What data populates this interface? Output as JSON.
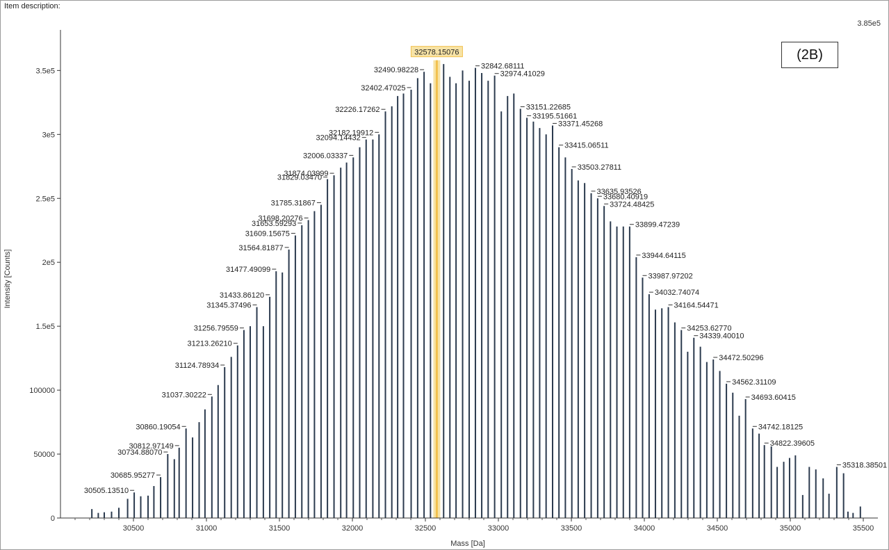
{
  "item_description_label": "Item description:",
  "panel_label": "(2B)",
  "chart_data": {
    "type": "bar",
    "title": "",
    "xlabel": "Mass [Da]",
    "ylabel": "Intensity [Counts]",
    "xlim": [
      30000,
      35600
    ],
    "ylim": [
      0,
      385000
    ],
    "max_intensity_label": "3.85e5",
    "x_ticks": [
      {
        "value": 30500,
        "label": "30500"
      },
      {
        "value": 31000,
        "label": "31000"
      },
      {
        "value": 31500,
        "label": "31500"
      },
      {
        "value": 32000,
        "label": "32000"
      },
      {
        "value": 32500,
        "label": "32500"
      },
      {
        "value": 33000,
        "label": "33000"
      },
      {
        "value": 33500,
        "label": "33500"
      },
      {
        "value": 34000,
        "label": "34000"
      },
      {
        "value": 34500,
        "label": "34500"
      },
      {
        "value": 35000,
        "label": "35000"
      },
      {
        "value": 35500,
        "label": "35500"
      }
    ],
    "y_ticks": [
      {
        "value": 0,
        "label": "0"
      },
      {
        "value": 50000,
        "label": "50000"
      },
      {
        "value": 100000,
        "label": "100000"
      },
      {
        "value": 150000,
        "label": "1.5e5"
      },
      {
        "value": 200000,
        "label": "2e5"
      },
      {
        "value": 250000,
        "label": "2.5e5"
      },
      {
        "value": 300000,
        "label": "3e5"
      },
      {
        "value": 350000,
        "label": "3.5e5"
      }
    ],
    "bar_color": "#2b3a4e",
    "highlight_color": "#f2c14e",
    "highlight_fill": "#f7e3a6",
    "highlighted_peak": 32578.15076,
    "peaks": [
      [
        30215,
        7000
      ],
      [
        30259,
        4000
      ],
      [
        30300,
        4500
      ],
      [
        30350,
        5000
      ],
      [
        30400,
        8000
      ],
      [
        30460,
        15000
      ],
      [
        30505.1351,
        20000
      ],
      [
        30550,
        17000
      ],
      [
        30600,
        17500
      ],
      [
        30640,
        25000
      ],
      [
        30685.95277,
        32000
      ],
      [
        30734.8807,
        50000
      ],
      [
        30780,
        46000
      ],
      [
        30812.97149,
        55000
      ],
      [
        30860.19054,
        70000
      ],
      [
        30905,
        63000
      ],
      [
        30950,
        75000
      ],
      [
        30990,
        85000
      ],
      [
        31037.30222,
        95000
      ],
      [
        31080,
        104000
      ],
      [
        31124.78934,
        118000
      ],
      [
        31170,
        126000
      ],
      [
        31213.2621,
        135000
      ],
      [
        31256.79559,
        147000
      ],
      [
        31300,
        150000
      ],
      [
        31345.37496,
        165000
      ],
      [
        31390,
        150000
      ],
      [
        31433.8612,
        173000
      ],
      [
        31477.49099,
        193000
      ],
      [
        31520,
        192000
      ],
      [
        31564.81877,
        210000
      ],
      [
        31609.15675,
        221000
      ],
      [
        31653.59293,
        229000
      ],
      [
        31698.20276,
        233000
      ],
      [
        31740,
        240000
      ],
      [
        31785.31867,
        245000
      ],
      [
        31829.0347,
        265000
      ],
      [
        31874.03999,
        268000
      ],
      [
        31920,
        274000
      ],
      [
        31960,
        278000
      ],
      [
        32006.03337,
        282000
      ],
      [
        32050,
        290000
      ],
      [
        32094.14432,
        296000
      ],
      [
        32140,
        296000
      ],
      [
        32182.19912,
        300000
      ],
      [
        32226.17262,
        318000
      ],
      [
        32270,
        322000
      ],
      [
        32310,
        330000
      ],
      [
        32350,
        332000
      ],
      [
        32402.47025,
        335000
      ],
      [
        32447,
        344000
      ],
      [
        32490.98228,
        349000
      ],
      [
        32535,
        340000
      ],
      [
        32578.15076,
        358000
      ],
      [
        32625,
        355000
      ],
      [
        32668,
        345000
      ],
      [
        32710,
        340000
      ],
      [
        32755,
        350000
      ],
      [
        32800,
        342000
      ],
      [
        32842.68111,
        352000
      ],
      [
        32886,
        348000
      ],
      [
        32930,
        342000
      ],
      [
        32974.41029,
        346000
      ],
      [
        33020,
        318000
      ],
      [
        33063,
        330000
      ],
      [
        33106,
        332000
      ],
      [
        33151.22685,
        320000
      ],
      [
        33195.51661,
        313000
      ],
      [
        33240,
        310000
      ],
      [
        33283,
        305000
      ],
      [
        33327,
        300000
      ],
      [
        33371.45268,
        307000
      ],
      [
        33415.06511,
        290000
      ],
      [
        33459,
        282000
      ],
      [
        33503.27811,
        273000
      ],
      [
        33547,
        264000
      ],
      [
        33591,
        262000
      ],
      [
        33635.93526,
        254000
      ],
      [
        33680.40919,
        250000
      ],
      [
        33724.48425,
        244000
      ],
      [
        33768,
        232000
      ],
      [
        33812,
        228000
      ],
      [
        33856,
        228000
      ],
      [
        33899.47239,
        228000
      ],
      [
        33944.64115,
        204000
      ],
      [
        33987.97202,
        188000
      ],
      [
        34032.74074,
        175000
      ],
      [
        34076,
        163000
      ],
      [
        34120,
        164000
      ],
      [
        34164.54471,
        165000
      ],
      [
        34209,
        153000
      ],
      [
        34253.6277,
        147000
      ],
      [
        34297,
        130000
      ],
      [
        34339.4001,
        141000
      ],
      [
        34384,
        134000
      ],
      [
        34428,
        122000
      ],
      [
        34472.50296,
        124000
      ],
      [
        34517,
        115000
      ],
      [
        34562.31109,
        105000
      ],
      [
        34606,
        98000
      ],
      [
        34650,
        80000
      ],
      [
        34693.60415,
        93000
      ],
      [
        34742.18125,
        70000
      ],
      [
        34786,
        66000
      ],
      [
        34822.39605,
        57000
      ],
      [
        34870,
        56000
      ],
      [
        34910,
        40000
      ],
      [
        34955,
        44000
      ],
      [
        34995,
        47000
      ],
      [
        35035,
        49000
      ],
      [
        35085,
        18000
      ],
      [
        35130,
        40000
      ],
      [
        35175,
        38000
      ],
      [
        35225,
        31000
      ],
      [
        35265,
        19000
      ],
      [
        35318.38501,
        40000
      ],
      [
        35365,
        35000
      ],
      [
        35395,
        5000
      ],
      [
        35430,
        4000
      ],
      [
        35480,
        9000
      ]
    ],
    "annotations": [
      {
        "text": "30505.13510",
        "mass": 30505.1351
      },
      {
        "text": "30685.95277",
        "mass": 30685.95277
      },
      {
        "text": "30734.88070",
        "mass": 30734.8807
      },
      {
        "text": "30812.97149",
        "mass": 30812.97149
      },
      {
        "text": "30860.19054",
        "mass": 30860.19054
      },
      {
        "text": "31037.30222",
        "mass": 31037.30222
      },
      {
        "text": "31124.78934",
        "mass": 31124.78934
      },
      {
        "text": "31213.26210",
        "mass": 31213.2621
      },
      {
        "text": "31256.79559",
        "mass": 31256.79559
      },
      {
        "text": "31345.37496",
        "mass": 31345.37496
      },
      {
        "text": "31433.86120",
        "mass": 31433.8612
      },
      {
        "text": "31477.49099",
        "mass": 31477.49099
      },
      {
        "text": "31564.81877",
        "mass": 31564.81877
      },
      {
        "text": "31609.15675",
        "mass": 31609.15675
      },
      {
        "text": "31653.59293",
        "mass": 31653.59293
      },
      {
        "text": "31698.20276",
        "mass": 31698.20276
      },
      {
        "text": "31785.31867",
        "mass": 31785.31867
      },
      {
        "text": "31829.03470",
        "mass": 31829.0347
      },
      {
        "text": "31874.03999",
        "mass": 31874.03999
      },
      {
        "text": "32006.03337",
        "mass": 32006.03337
      },
      {
        "text": "32094.14432",
        "mass": 32094.14432
      },
      {
        "text": "32182.19912",
        "mass": 32182.19912
      },
      {
        "text": "32226.17262",
        "mass": 32226.17262
      },
      {
        "text": "32402.47025",
        "mass": 32402.47025
      },
      {
        "text": "32490.98228",
        "mass": 32490.98228
      },
      {
        "text": "32578.15076",
        "mass": 32578.15076
      },
      {
        "text": "32842.68111",
        "mass": 32842.68111
      },
      {
        "text": "32974.41029",
        "mass": 32974.41029
      },
      {
        "text": "33151.22685",
        "mass": 33151.22685
      },
      {
        "text": "33195.51661",
        "mass": 33195.51661
      },
      {
        "text": "33371.45268",
        "mass": 33371.45268
      },
      {
        "text": "33415.06511",
        "mass": 33415.06511
      },
      {
        "text": "33503.27811",
        "mass": 33503.27811
      },
      {
        "text": "33635.93526",
        "mass": 33635.93526
      },
      {
        "text": "33680.40919",
        "mass": 33680.40919
      },
      {
        "text": "33724.48425",
        "mass": 33724.48425
      },
      {
        "text": "33899.47239",
        "mass": 33899.47239
      },
      {
        "text": "33944.64115",
        "mass": 33944.64115
      },
      {
        "text": "33987.97202",
        "mass": 33987.97202
      },
      {
        "text": "34032.74074",
        "mass": 34032.74074
      },
      {
        "text": "34164.54471",
        "mass": 34164.54471
      },
      {
        "text": "34253.62770",
        "mass": 34253.6277
      },
      {
        "text": "34339.40010",
        "mass": 34339.4001
      },
      {
        "text": "34472.50296",
        "mass": 34472.50296
      },
      {
        "text": "34562.31109",
        "mass": 34562.31109
      },
      {
        "text": "34693.60415",
        "mass": 34693.60415
      },
      {
        "text": "34742.18125",
        "mass": 34742.18125
      },
      {
        "text": "34822.39605",
        "mass": 34822.39605
      },
      {
        "text": "35318.38501",
        "mass": 35318.38501
      }
    ]
  }
}
